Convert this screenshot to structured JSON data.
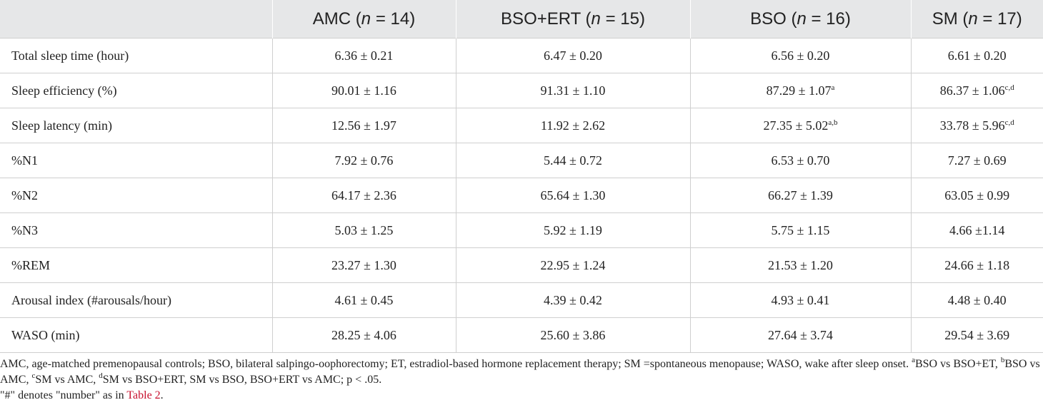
{
  "table": {
    "headers": [
      {
        "text": "",
        "n": ""
      },
      {
        "text": "AMC (",
        "n_label": "n",
        "n_eq": " = 14)"
      },
      {
        "text": "BSO+ERT (",
        "n_label": "n",
        "n_eq": " = 15)"
      },
      {
        "text": "BSO (",
        "n_label": "n",
        "n_eq": " = 16)"
      },
      {
        "text": "SM (",
        "n_label": "n",
        "n_eq": " = 17)"
      }
    ],
    "rows": [
      {
        "label": "Total sleep time (hour)",
        "cells": [
          {
            "v": "6.36 ± 0.21",
            "sup": ""
          },
          {
            "v": "6.47 ± 0.20",
            "sup": ""
          },
          {
            "v": "6.56 ± 0.20",
            "sup": ""
          },
          {
            "v": "6.61 ± 0.20",
            "sup": ""
          }
        ]
      },
      {
        "label": "Sleep efficiency (%)",
        "cells": [
          {
            "v": "90.01 ± 1.16",
            "sup": ""
          },
          {
            "v": "91.31 ± 1.10",
            "sup": ""
          },
          {
            "v": "87.29 ± 1.07",
            "sup": "a"
          },
          {
            "v": "86.37 ± 1.06",
            "sup": "c,d"
          }
        ]
      },
      {
        "label": "Sleep latency (min)",
        "cells": [
          {
            "v": "12.56 ± 1.97",
            "sup": ""
          },
          {
            "v": "11.92 ± 2.62",
            "sup": ""
          },
          {
            "v": "27.35 ± 5.02",
            "sup": "a,b"
          },
          {
            "v": "33.78 ± 5.96",
            "sup": "c,d"
          }
        ]
      },
      {
        "label": "%N1",
        "cells": [
          {
            "v": "7.92 ± 0.76",
            "sup": ""
          },
          {
            "v": "5.44 ± 0.72",
            "sup": ""
          },
          {
            "v": "6.53 ± 0.70",
            "sup": ""
          },
          {
            "v": "7.27 ± 0.69",
            "sup": ""
          }
        ]
      },
      {
        "label": "%N2",
        "cells": [
          {
            "v": "64.17 ± 2.36",
            "sup": ""
          },
          {
            "v": "65.64 ± 1.30",
            "sup": ""
          },
          {
            "v": "66.27 ± 1.39",
            "sup": ""
          },
          {
            "v": "63.05 ± 0.99",
            "sup": ""
          }
        ]
      },
      {
        "label": "%N3",
        "cells": [
          {
            "v": "5.03 ± 1.25",
            "sup": ""
          },
          {
            "v": "5.92 ± 1.19",
            "sup": ""
          },
          {
            "v": "5.75 ± 1.15",
            "sup": ""
          },
          {
            "v": "4.66 ±1.14",
            "sup": ""
          }
        ]
      },
      {
        "label": "%REM",
        "cells": [
          {
            "v": "23.27 ± 1.30",
            "sup": ""
          },
          {
            "v": "22.95 ± 1.24",
            "sup": ""
          },
          {
            "v": "21.53 ± 1.20",
            "sup": ""
          },
          {
            "v": "24.66 ± 1.18",
            "sup": ""
          }
        ]
      },
      {
        "label": "Arousal index (#arousals/hour)",
        "cells": [
          {
            "v": "4.61 ± 0.45",
            "sup": ""
          },
          {
            "v": "4.39 ± 0.42",
            "sup": ""
          },
          {
            "v": "4.93 ± 0.41",
            "sup": ""
          },
          {
            "v": "4.48 ± 0.40",
            "sup": ""
          }
        ]
      },
      {
        "label": "WASO (min)",
        "cells": [
          {
            "v": "28.25 ± 4.06",
            "sup": ""
          },
          {
            "v": "25.60 ± 3.86",
            "sup": ""
          },
          {
            "v": "27.64 ± 3.74",
            "sup": ""
          },
          {
            "v": "29.54 ± 3.69",
            "sup": ""
          }
        ]
      }
    ]
  },
  "footnote": {
    "line1": "AMC, age-matched premenopausal controls; BSO, bilateral salpingo-oophorectomy; ET, estradiol-based hormone replacement therapy; SM =spontaneous menopause; WASO, wake after sleep onset. ",
    "sa": "a",
    "ta": "BSO vs BSO+ET, ",
    "sb": "b",
    "tb": "BSO vs AMC, ",
    "sc": "c",
    "tc": "SM vs AMC, ",
    "sd": "d",
    "td": "SM vs BSO+ERT, SM vs BSO, BSO+ERT vs AMC; p < .05.",
    "line2_prefix": "\"#\" denotes \"number\" as in ",
    "link": "Table 2",
    "line2_suffix": "."
  }
}
